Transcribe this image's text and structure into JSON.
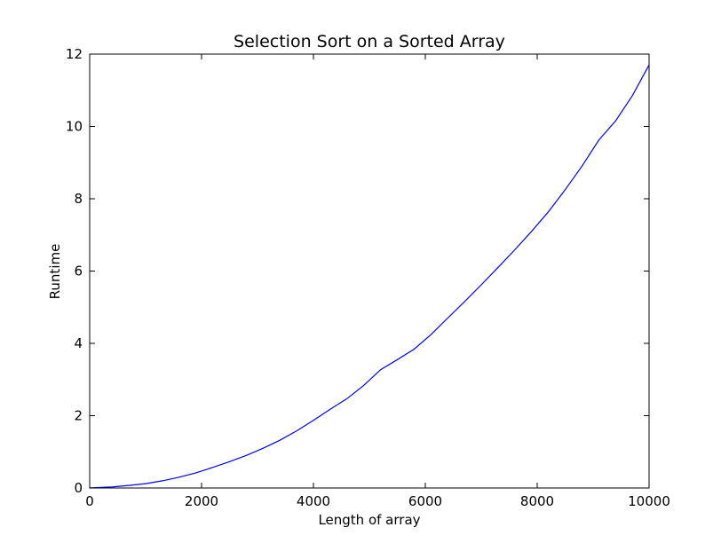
{
  "chart_data": {
    "type": "line",
    "title": "Selection Sort on a Sorted Array",
    "xlabel": "Length of array",
    "ylabel": "Runtime",
    "xlim": [
      0,
      10000
    ],
    "ylim": [
      0,
      12
    ],
    "xticks": [
      0,
      2000,
      4000,
      6000,
      8000,
      10000
    ],
    "yticks": [
      0,
      2,
      4,
      6,
      8,
      10,
      12
    ],
    "grid": false,
    "legend": "none",
    "series": [
      {
        "color": "#0000ff",
        "x": [
          0,
          100,
          400,
          700,
          1000,
          1300,
          1600,
          1900,
          2200,
          2500,
          2800,
          3100,
          3400,
          3700,
          4000,
          4300,
          4600,
          4900,
          5200,
          5500,
          5800,
          6100,
          6400,
          6700,
          7000,
          7300,
          7600,
          7900,
          8200,
          8500,
          8800,
          9100,
          9400,
          9700,
          10000
        ],
        "y": [
          0,
          0.01,
          0.03,
          0.07,
          0.12,
          0.2,
          0.3,
          0.42,
          0.57,
          0.73,
          0.9,
          1.1,
          1.32,
          1.58,
          1.87,
          2.18,
          2.47,
          2.84,
          3.27,
          3.55,
          3.84,
          4.24,
          4.7,
          5.15,
          5.62,
          6.1,
          6.59,
          7.1,
          7.64,
          8.25,
          8.9,
          9.62,
          10.15,
          10.85,
          11.7
        ]
      }
    ]
  }
}
